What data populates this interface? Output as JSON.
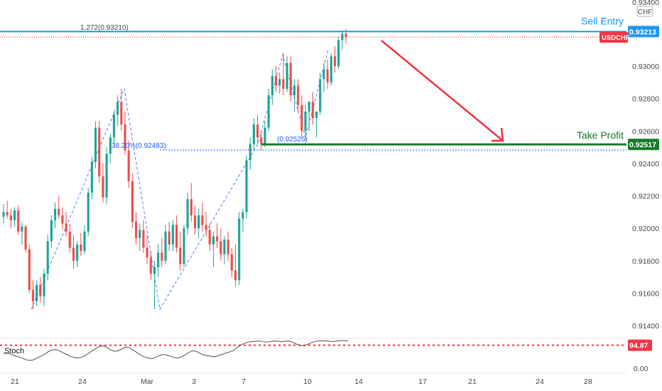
{
  "chart_data": {
    "type": "candlestick",
    "symbol": "USDCHF",
    "currency": "CHF",
    "y_axis": {
      "ticks": [
        "0.93000",
        "0.92800",
        "0.92600",
        "0.92400",
        "0.92200",
        "0.92000",
        "0.91800",
        "0.91600",
        "0.91400"
      ],
      "tick_values": [
        0.93,
        0.928,
        0.926,
        0.924,
        0.922,
        0.92,
        0.918,
        0.916,
        0.914
      ],
      "partial_top_tick": "0.93400",
      "ylim": [
        0.9134,
        0.9338
      ]
    },
    "x_axis": {
      "ticks": [
        "21",
        "24",
        "Mar",
        "3",
        "7",
        "10",
        "14",
        "17",
        "21",
        "24",
        "28"
      ]
    },
    "levels": {
      "sell_entry": {
        "label": "Sell Entry",
        "value": 0.93213,
        "value_text": "0.93213",
        "color": "#2196f3"
      },
      "take_profit": {
        "label": "Take Profit",
        "value": 0.92517,
        "value_text": "0.92517",
        "color": "#1b7d2c"
      },
      "last_price": {
        "label": "USDCHF",
        "value": 0.9318,
        "color": "#f23645"
      }
    },
    "fib_annotations": [
      {
        "text": "1.272(0.93210)",
        "value": 0.9321,
        "color": "#2962ff"
      },
      {
        "text": "38.20%(0.92483)",
        "value": 0.92483,
        "color": "#2962ff"
      },
      {
        "text": "(0.92526)",
        "value": 0.92526,
        "color": "#2962ff"
      }
    ],
    "candles": [
      [
        0.9207,
        0.9215,
        0.9203,
        0.921
      ],
      [
        0.921,
        0.9217,
        0.9206,
        0.9208
      ],
      [
        0.9208,
        0.9212,
        0.92,
        0.9205
      ],
      [
        0.9205,
        0.9213,
        0.9201,
        0.9211
      ],
      [
        0.9211,
        0.9214,
        0.9196,
        0.9198
      ],
      [
        0.9198,
        0.9204,
        0.919,
        0.9201
      ],
      [
        0.9201,
        0.9202,
        0.9185,
        0.9187
      ],
      [
        0.9187,
        0.919,
        0.916,
        0.9162
      ],
      [
        0.9162,
        0.9168,
        0.915,
        0.9155
      ],
      [
        0.9155,
        0.9168,
        0.9152,
        0.9165
      ],
      [
        0.9165,
        0.917,
        0.9154,
        0.9158
      ],
      [
        0.9158,
        0.9175,
        0.9152,
        0.9172
      ],
      [
        0.9172,
        0.9196,
        0.9168,
        0.9192
      ],
      [
        0.9192,
        0.9208,
        0.9188,
        0.9205
      ],
      [
        0.9205,
        0.9216,
        0.92,
        0.9212
      ],
      [
        0.9212,
        0.922,
        0.9206,
        0.9208
      ],
      [
        0.9208,
        0.9213,
        0.9199,
        0.9203
      ],
      [
        0.9203,
        0.921,
        0.9195,
        0.9198
      ],
      [
        0.9198,
        0.9203,
        0.9185,
        0.9188
      ],
      [
        0.9188,
        0.9196,
        0.9175,
        0.918
      ],
      [
        0.918,
        0.9192,
        0.9176,
        0.919
      ],
      [
        0.919,
        0.9197,
        0.9183,
        0.9186
      ],
      [
        0.9186,
        0.9202,
        0.9184,
        0.9198
      ],
      [
        0.9198,
        0.9225,
        0.9195,
        0.9222
      ],
      [
        0.9222,
        0.9244,
        0.9218,
        0.9241
      ],
      [
        0.9241,
        0.9266,
        0.9237,
        0.9262
      ],
      [
        0.9262,
        0.9266,
        0.9228,
        0.9232
      ],
      [
        0.9232,
        0.924,
        0.9216,
        0.9219
      ],
      [
        0.9219,
        0.925,
        0.9215,
        0.9246
      ],
      [
        0.9246,
        0.9258,
        0.924,
        0.9256
      ],
      [
        0.9256,
        0.9272,
        0.9252,
        0.927
      ],
      [
        0.927,
        0.9282,
        0.9263,
        0.9278
      ],
      [
        0.9278,
        0.9286,
        0.926,
        0.9264
      ],
      [
        0.9264,
        0.9272,
        0.9245,
        0.9248
      ],
      [
        0.9248,
        0.9254,
        0.9225,
        0.9229
      ],
      [
        0.9229,
        0.9234,
        0.92,
        0.9204
      ],
      [
        0.9204,
        0.921,
        0.919,
        0.9194
      ],
      [
        0.9194,
        0.9203,
        0.9186,
        0.9199
      ],
      [
        0.9199,
        0.9205,
        0.9185,
        0.9188
      ],
      [
        0.9188,
        0.9196,
        0.9178,
        0.9182
      ],
      [
        0.9182,
        0.9186,
        0.9168,
        0.9172
      ],
      [
        0.9172,
        0.918,
        0.915,
        0.9176
      ],
      [
        0.9176,
        0.919,
        0.917,
        0.9185
      ],
      [
        0.9185,
        0.9194,
        0.9176,
        0.918
      ],
      [
        0.918,
        0.9202,
        0.9178,
        0.9198
      ],
      [
        0.9198,
        0.9204,
        0.9186,
        0.919
      ],
      [
        0.919,
        0.9205,
        0.9186,
        0.9202
      ],
      [
        0.9202,
        0.9208,
        0.9185,
        0.9188
      ],
      [
        0.9188,
        0.9198,
        0.9174,
        0.9178
      ],
      [
        0.9178,
        0.9202,
        0.9176,
        0.92
      ],
      [
        0.92,
        0.9222,
        0.9196,
        0.9218
      ],
      [
        0.9218,
        0.9228,
        0.9204,
        0.9208
      ],
      [
        0.9208,
        0.9214,
        0.9196,
        0.92
      ],
      [
        0.92,
        0.9212,
        0.9194,
        0.9208
      ],
      [
        0.9208,
        0.9216,
        0.9198,
        0.9202
      ],
      [
        0.9202,
        0.921,
        0.9195,
        0.9199
      ],
      [
        0.9199,
        0.9203,
        0.9186,
        0.919
      ],
      [
        0.919,
        0.9198,
        0.9176,
        0.9195
      ],
      [
        0.9195,
        0.9203,
        0.9188,
        0.9192
      ],
      [
        0.9192,
        0.92,
        0.918,
        0.9184
      ],
      [
        0.9184,
        0.9195,
        0.9178,
        0.9193
      ],
      [
        0.9193,
        0.9198,
        0.918,
        0.9184
      ],
      [
        0.9184,
        0.9188,
        0.917,
        0.9174
      ],
      [
        0.9174,
        0.919,
        0.9164,
        0.9168
      ],
      [
        0.9168,
        0.921,
        0.9165,
        0.9206
      ],
      [
        0.9206,
        0.9212,
        0.9198,
        0.921
      ],
      [
        0.921,
        0.9245,
        0.9206,
        0.9242
      ],
      [
        0.9242,
        0.9256,
        0.9236,
        0.9252
      ],
      [
        0.9252,
        0.9268,
        0.9248,
        0.9264
      ],
      [
        0.9264,
        0.927,
        0.9252,
        0.9256
      ],
      [
        0.9256,
        0.926,
        0.9248,
        0.9252
      ],
      [
        0.9252,
        0.9266,
        0.925,
        0.9262
      ],
      [
        0.9262,
        0.9286,
        0.926,
        0.9282
      ],
      [
        0.9282,
        0.9298,
        0.9276,
        0.9294
      ],
      [
        0.9294,
        0.93,
        0.9284,
        0.9288
      ],
      [
        0.9288,
        0.9296,
        0.9283,
        0.9292
      ],
      [
        0.9292,
        0.9308,
        0.9282,
        0.9286
      ],
      [
        0.9286,
        0.9306,
        0.9284,
        0.9302
      ],
      [
        0.9302,
        0.9306,
        0.9278,
        0.9282
      ],
      [
        0.9282,
        0.9292,
        0.9272,
        0.9288
      ],
      [
        0.9288,
        0.9292,
        0.9272,
        0.9276
      ],
      [
        0.9276,
        0.9282,
        0.9256,
        0.926
      ],
      [
        0.926,
        0.9276,
        0.9254,
        0.9272
      ],
      [
        0.9272,
        0.9278,
        0.926,
        0.9278
      ],
      [
        0.9278,
        0.9284,
        0.9264,
        0.9268
      ],
      [
        0.9268,
        0.9272,
        0.9256,
        0.9272
      ],
      [
        0.9272,
        0.9296,
        0.927,
        0.9292
      ],
      [
        0.9292,
        0.9302,
        0.9284,
        0.9298
      ],
      [
        0.9298,
        0.9304,
        0.9286,
        0.929
      ],
      [
        0.929,
        0.9308,
        0.9288,
        0.9306
      ],
      [
        0.9306,
        0.9312,
        0.9296,
        0.93
      ],
      [
        0.93,
        0.9318,
        0.9298,
        0.9316
      ],
      [
        0.9316,
        0.9322,
        0.931,
        0.932
      ],
      [
        0.932,
        0.9323,
        0.9314,
        0.9318
      ]
    ],
    "stoch": {
      "label": "Stoch",
      "value_text": "94.87",
      "ticks": [
        "0.00"
      ],
      "level_upper": 80,
      "values": [
        52,
        55,
        50,
        46,
        42,
        38,
        33,
        30,
        32,
        38,
        44,
        50,
        58,
        64,
        66,
        62,
        56,
        50,
        44,
        40,
        38,
        40,
        46,
        54,
        62,
        70,
        76,
        78,
        72,
        64,
        60,
        62,
        68,
        74,
        72,
        64,
        56,
        48,
        42,
        38,
        36,
        40,
        46,
        50,
        48,
        44,
        40,
        38,
        42,
        48,
        56,
        62,
        60,
        54,
        48,
        46,
        44,
        42,
        46,
        50,
        54,
        58,
        62,
        72,
        80,
        86,
        90,
        92,
        93,
        94,
        92,
        90,
        92,
        94,
        93,
        92,
        93,
        94,
        90,
        84,
        80,
        78,
        82,
        88,
        92,
        94,
        95,
        94,
        93,
        92,
        94,
        95,
        95,
        94
      ]
    }
  }
}
